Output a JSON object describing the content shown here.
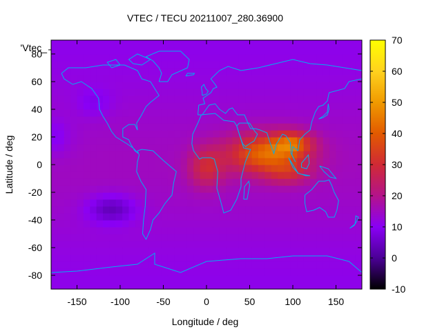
{
  "chart_data": {
    "type": "heatmap",
    "title": "VTEC / TECU 20211007_280.36900",
    "xlabel": "Longitude / deg",
    "ylabel": "Latitude / deg",
    "legend_label": "'Vtec_",
    "xlim": [
      -180,
      180
    ],
    "ylim": [
      -90,
      90
    ],
    "x_ticks": [
      -150,
      -100,
      -50,
      0,
      50,
      100,
      150
    ],
    "y_ticks": [
      -80,
      -60,
      -40,
      -20,
      0,
      20,
      40,
      60,
      80
    ],
    "colorbar": {
      "range": [
        -10,
        70
      ],
      "ticks": [
        -10,
        0,
        10,
        20,
        30,
        40,
        50,
        60,
        70
      ],
      "palette": [
        "#000000",
        "#4b0096",
        "#8a00f5",
        "#b4138a",
        "#d02a35",
        "#e25a00",
        "#f09a00",
        "#ffd21e",
        "#ffff00"
      ]
    },
    "grid": false,
    "features": [
      {
        "lon_min": 20,
        "lon_max": 130,
        "lat_min": -15,
        "lat_max": 25,
        "peak_lon": 95,
        "peak_lat": 15,
        "peak_value": 58
      },
      {
        "lon_min": -20,
        "lon_max": 20,
        "lat_min": -20,
        "lat_max": 15,
        "peak_value": 33
      },
      {
        "lon_min": -130,
        "lon_max": -90,
        "lat_min": -40,
        "lat_max": -25,
        "peak_value": 4
      }
    ],
    "background_value": 13,
    "coastline_color": "#00b0f0"
  }
}
